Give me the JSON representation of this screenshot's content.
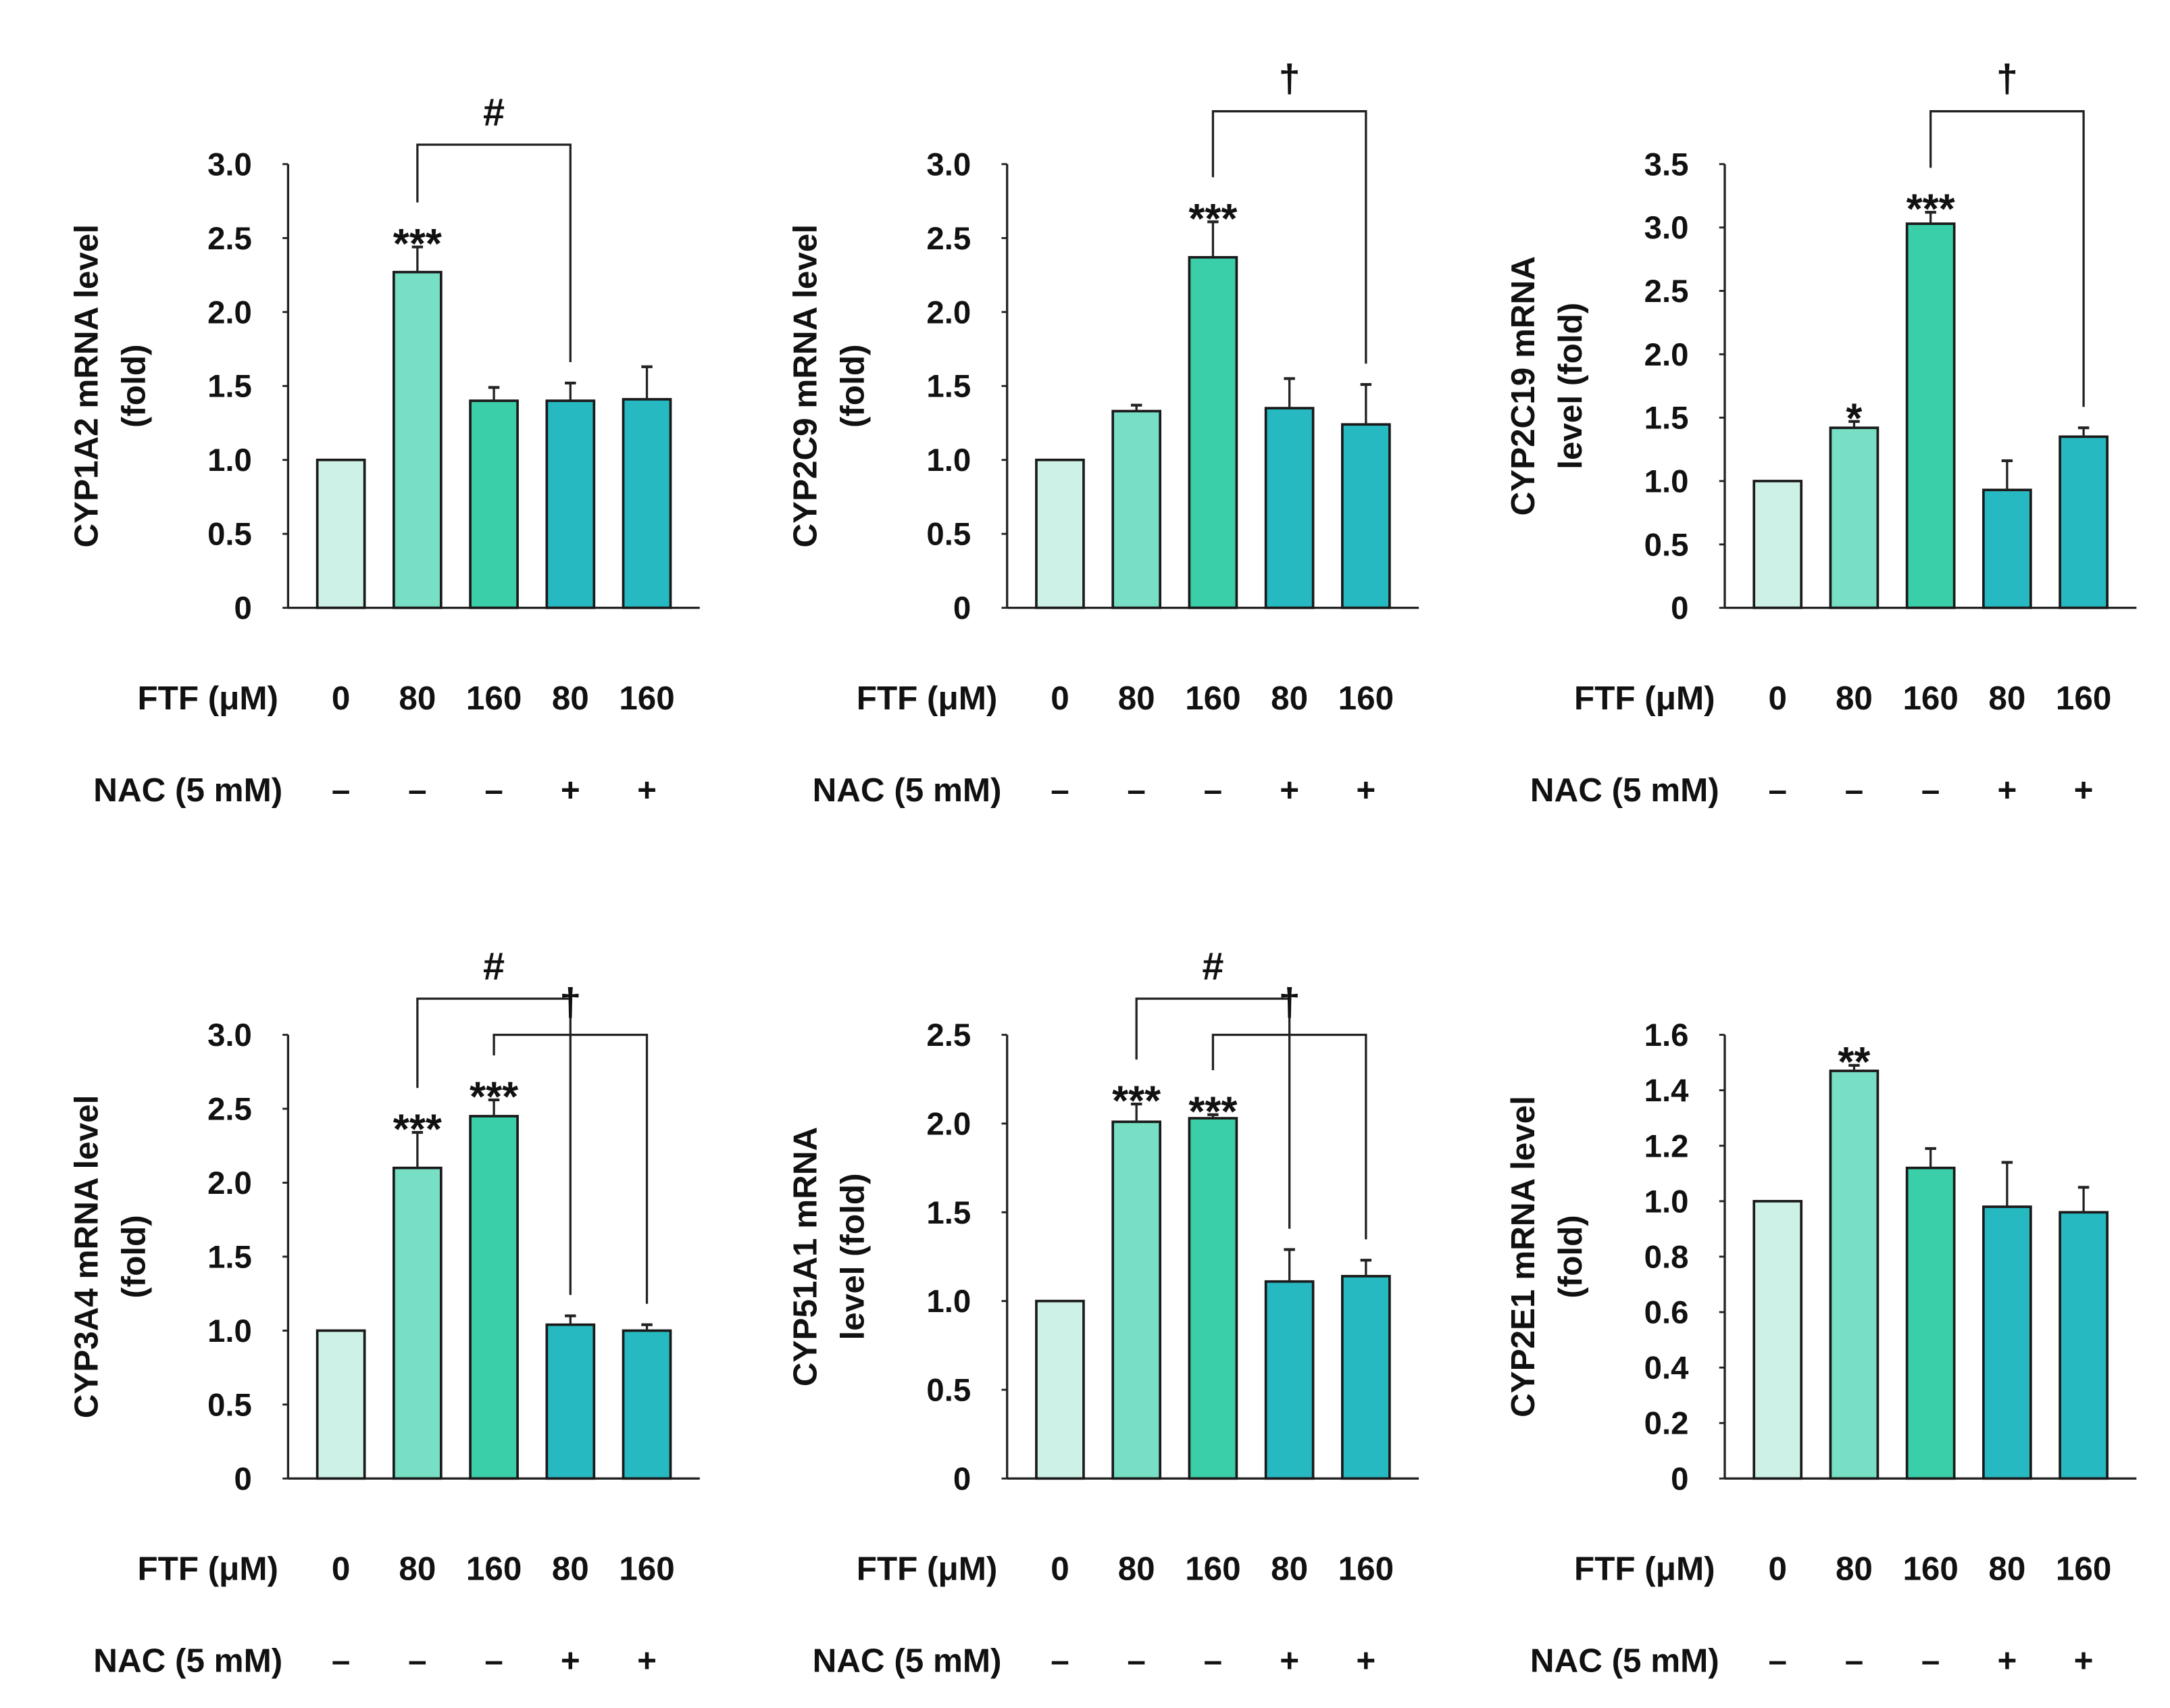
{
  "colors": {
    "bars": [
      "#cdf1e6",
      "#76dfc4",
      "#3acfa8",
      "#27b9c2",
      "#27b9c2"
    ],
    "stroke": "#1a1a1a"
  },
  "row_labels": {
    "ftf": "FTF (μM)",
    "nac": "NAC (5 mM)"
  },
  "chart_data": [
    {
      "type": "bar",
      "ylabel": [
        "CYP1A2 mRNA level",
        "(fold)"
      ],
      "ylim": [
        0,
        3.0
      ],
      "yticks": [
        "0",
        "0.5",
        "1.0",
        "1.5",
        "2.0",
        "2.5",
        "3.0"
      ],
      "ftf": [
        "0",
        "80",
        "160",
        "80",
        "160"
      ],
      "nac": [
        "–",
        "–",
        "–",
        "+",
        "+"
      ],
      "values": [
        1.0,
        2.27,
        1.4,
        1.4,
        1.41
      ],
      "errors": [
        0,
        0.17,
        0.09,
        0.12,
        0.22
      ],
      "marks": [
        "",
        "***",
        "",
        "",
        ""
      ],
      "brackets": [
        {
          "from": 1,
          "to": 3,
          "label": "#"
        }
      ]
    },
    {
      "type": "bar",
      "ylabel": [
        "CYP2C9 mRNA level",
        "(fold)"
      ],
      "ylim": [
        0,
        3.0
      ],
      "yticks": [
        "0",
        "0.5",
        "1.0",
        "1.5",
        "2.0",
        "2.5",
        "3.0"
      ],
      "ftf": [
        "0",
        "80",
        "160",
        "80",
        "160"
      ],
      "nac": [
        "–",
        "–",
        "–",
        "+",
        "+"
      ],
      "values": [
        1.0,
        1.33,
        2.37,
        1.35,
        1.24
      ],
      "errors": [
        0,
        0.04,
        0.24,
        0.2,
        0.27
      ],
      "marks": [
        "",
        "",
        "***",
        "",
        ""
      ],
      "brackets": [
        {
          "from": 2,
          "to": 4,
          "label": "†"
        }
      ]
    },
    {
      "type": "bar",
      "ylabel": [
        "CYP2C19 mRNA",
        "level (fold)"
      ],
      "ylim": [
        0,
        3.5
      ],
      "yticks": [
        "0",
        "0.5",
        "1.0",
        "1.5",
        "2.0",
        "2.5",
        "3.0",
        "3.5"
      ],
      "ftf": [
        "0",
        "80",
        "160",
        "80",
        "160"
      ],
      "nac": [
        "–",
        "–",
        "–",
        "+",
        "+"
      ],
      "values": [
        1.0,
        1.42,
        3.03,
        0.93,
        1.35
      ],
      "errors": [
        0,
        0.05,
        0.09,
        0.23,
        0.07
      ],
      "marks": [
        "",
        "*",
        "***",
        "",
        ""
      ],
      "brackets": [
        {
          "from": 2,
          "to": 4,
          "label": "†"
        }
      ]
    },
    {
      "type": "bar",
      "ylabel": [
        "CYP3A4 mRNA level",
        "(fold)"
      ],
      "ylim": [
        0,
        3.0
      ],
      "yticks": [
        "0",
        "0.5",
        "1.0",
        "1.5",
        "2.0",
        "2.5",
        "3.0"
      ],
      "ftf": [
        "0",
        "80",
        "160",
        "80",
        "160"
      ],
      "nac": [
        "–",
        "–",
        "–",
        "+",
        "+"
      ],
      "values": [
        1.0,
        2.1,
        2.45,
        1.04,
        1.0
      ],
      "errors": [
        0,
        0.24,
        0.11,
        0.06,
        0.04
      ],
      "marks": [
        "",
        "***",
        "***",
        "",
        ""
      ],
      "brackets": [
        {
          "from": 1,
          "to": 3,
          "label": "#"
        },
        {
          "from": 2,
          "to": 4,
          "label": "†"
        }
      ]
    },
    {
      "type": "bar",
      "ylabel": [
        "CYP51A1 mRNA",
        "level (fold)"
      ],
      "ylim": [
        0,
        2.5
      ],
      "yticks": [
        "0",
        "0.5",
        "1.0",
        "1.5",
        "2.0",
        "2.5"
      ],
      "ftf": [
        "0",
        "80",
        "160",
        "80",
        "160"
      ],
      "nac": [
        "–",
        "–",
        "–",
        "+",
        "+"
      ],
      "values": [
        1.0,
        2.01,
        2.03,
        1.11,
        1.14
      ],
      "errors": [
        0,
        0.1,
        0.02,
        0.18,
        0.09
      ],
      "marks": [
        "",
        "***",
        "***",
        "",
        ""
      ],
      "brackets": [
        {
          "from": 1,
          "to": 3,
          "label": "#"
        },
        {
          "from": 2,
          "to": 4,
          "label": "†"
        }
      ]
    },
    {
      "type": "bar",
      "ylabel": [
        "CYP2E1 mRNA  level",
        "(fold)"
      ],
      "ylim": [
        0,
        1.6
      ],
      "yticks": [
        "0",
        "0.2",
        "0.4",
        "0.6",
        "0.8",
        "1.0",
        "1.2",
        "1.4",
        "1.6"
      ],
      "ftf": [
        "0",
        "80",
        "160",
        "80",
        "160"
      ],
      "nac": [
        "–",
        "–",
        "–",
        "+",
        "+"
      ],
      "values": [
        1.0,
        1.47,
        1.12,
        0.98,
        0.96
      ],
      "errors": [
        0,
        0.02,
        0.07,
        0.16,
        0.09
      ],
      "marks": [
        "",
        "**",
        "",
        "",
        ""
      ],
      "brackets": []
    }
  ]
}
